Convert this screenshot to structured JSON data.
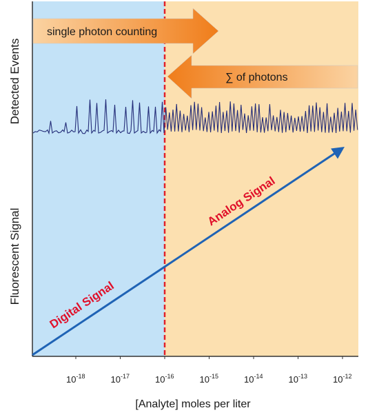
{
  "colors": {
    "digital_region": "#c3e2f7",
    "analog_region": "#fce0b0",
    "divider": "#e0202a",
    "noise_trace": "#232c78",
    "signal_line": "#1f63b5",
    "signal_text": "#e0102a",
    "arrow_dark": "#f07d1a",
    "arrow_light": "#fbd3a2"
  },
  "labels": {
    "top_y_axis": "Detected Events",
    "bottom_y_axis": "Fluorescent Signal",
    "x_axis": "[Analyte] moles per liter",
    "digital_signal": "Digital Signal",
    "analog_signal": "Analog Signal",
    "arrow_counting": "single photon counting",
    "arrow_sum": "∑ of photons"
  },
  "x_ticks": [
    {
      "base": "10",
      "exp": "-18"
    },
    {
      "base": "10",
      "exp": "-17"
    },
    {
      "base": "10",
      "exp": "-16"
    },
    {
      "base": "10",
      "exp": "-15"
    },
    {
      "base": "10",
      "exp": "-14"
    },
    {
      "base": "10",
      "exp": "-13"
    },
    {
      "base": "10",
      "exp": "-12"
    }
  ],
  "divider_at_exponent": -16
}
